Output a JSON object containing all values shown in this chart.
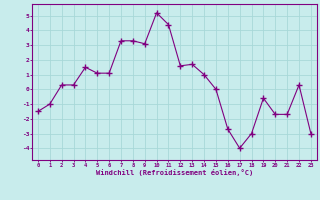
{
  "x": [
    0,
    1,
    2,
    3,
    4,
    5,
    6,
    7,
    8,
    9,
    10,
    11,
    12,
    13,
    14,
    15,
    16,
    17,
    18,
    19,
    20,
    21,
    22,
    23
  ],
  "y": [
    -1.5,
    -1.0,
    0.3,
    0.3,
    1.5,
    1.1,
    1.1,
    3.3,
    3.3,
    3.1,
    5.2,
    4.4,
    1.6,
    1.7,
    1.0,
    0.0,
    -2.7,
    -4.0,
    -3.0,
    -0.6,
    -1.7,
    -1.7,
    0.3,
    -3.0
  ],
  "line_color": "#800080",
  "marker_color": "#800080",
  "bg_color": "#c8ecec",
  "grid_color": "#a8d8d8",
  "xlabel": "Windchill (Refroidissement éolien,°C)",
  "xlabel_color": "#800080",
  "xtick_labels": [
    "0",
    "1",
    "2",
    "3",
    "4",
    "5",
    "6",
    "7",
    "8",
    "9",
    "10",
    "11",
    "12",
    "13",
    "14",
    "15",
    "16",
    "17",
    "18",
    "19",
    "20",
    "21",
    "22",
    "23"
  ],
  "ytick_labels": [
    "-4",
    "-3",
    "-2",
    "-1",
    "0",
    "1",
    "2",
    "3",
    "4",
    "5"
  ],
  "ytick_vals": [
    -4,
    -3,
    -2,
    -1,
    0,
    1,
    2,
    3,
    4,
    5
  ],
  "ylim": [
    -4.8,
    5.8
  ],
  "xlim": [
    -0.5,
    23.5
  ],
  "tick_color": "#800080",
  "spine_color": "#800080"
}
